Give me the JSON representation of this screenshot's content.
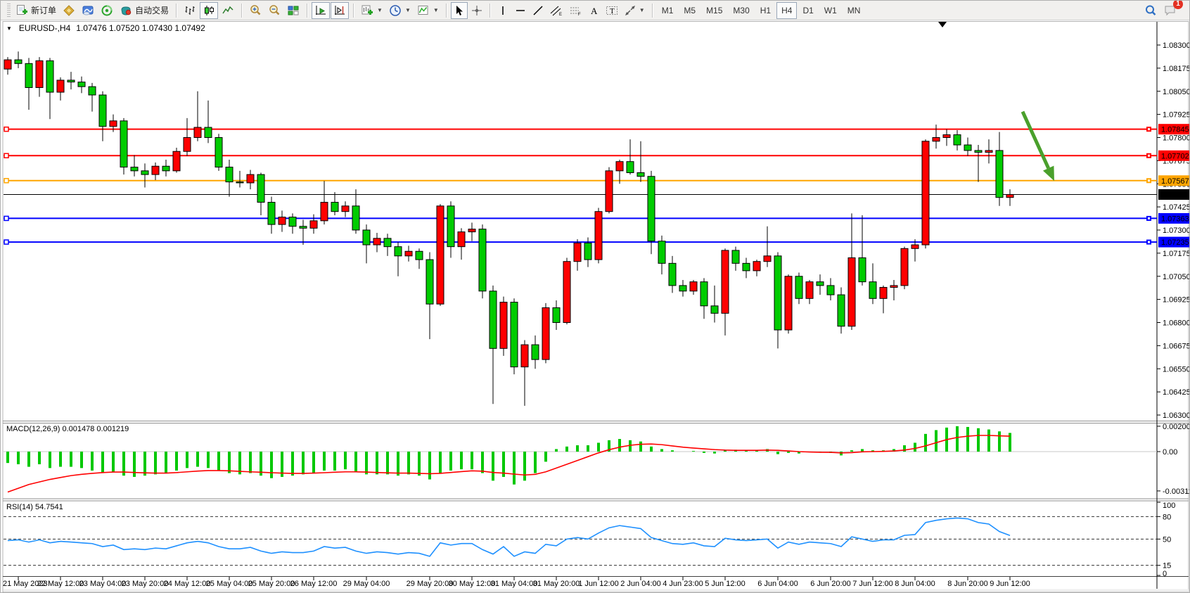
{
  "toolbar": {
    "new_order": "新订单",
    "autotrading": "自动交易",
    "timeframes": [
      "M1",
      "M5",
      "M15",
      "M30",
      "H1",
      "H4",
      "D1",
      "W1",
      "MN"
    ],
    "active_timeframe": "H4",
    "notification_badge": "1"
  },
  "chart": {
    "symbol_title": "EURUSD-,H4",
    "quote": "1.07476 1.07520 1.07430 1.07492"
  },
  "chart_data": [
    {
      "type": "candlestick",
      "symbol": "EURUSD-",
      "timeframe": "H4",
      "up_color": "#ff0000",
      "down_color": "#00cc00",
      "y_axis_ticks": [
        "1.08300",
        "1.08175",
        "1.08050",
        "1.07925",
        "1.07800",
        "1.07675",
        "1.07550",
        "1.07425",
        "1.07300",
        "1.07175",
        "1.07050",
        "1.06925",
        "1.06800",
        "1.06675",
        "1.06550",
        "1.06425",
        "1.06300"
      ],
      "ylim": [
        1.063,
        1.083
      ],
      "hlines": [
        {
          "price": 1.07845,
          "label": "1.07845",
          "color": "#ff0000"
        },
        {
          "price": 1.07702,
          "label": "1.07702",
          "color": "#ff0000"
        },
        {
          "price": 1.07567,
          "label": "1.07567",
          "color": "#ffa500"
        },
        {
          "price": 1.07363,
          "label": "1.07363",
          "color": "#0000ff"
        },
        {
          "price": 1.07235,
          "label": "1.07235",
          "color": "#0000ff"
        }
      ],
      "current_price": {
        "price": 1.07492,
        "label": "1.07492",
        "color": "#000000"
      },
      "arrow": {
        "from_bar": 96.2,
        "from_price": 1.0794,
        "to_bar": 99.2,
        "to_price": 1.07565,
        "color": "#4aa02c"
      },
      "time_labels": [
        [
          1,
          "21 May 2023"
        ],
        [
          5,
          "22 May 12:00"
        ],
        [
          9,
          "23 May 04:00"
        ],
        [
          13,
          "23 May 20:00"
        ],
        [
          17,
          "24 May 12:00"
        ],
        [
          21,
          "25 May 04:00"
        ],
        [
          25,
          "25 May 20:00"
        ],
        [
          29,
          "26 May 12:00"
        ],
        [
          34,
          "29 May 04:00"
        ],
        [
          40,
          "29 May 20:00"
        ],
        [
          44,
          "30 May 12:00"
        ],
        [
          48,
          "31 May 04:00"
        ],
        [
          52,
          "31 May 20:00"
        ],
        [
          56,
          "1 Jun 12:00"
        ],
        [
          60,
          "2 Jun 04:00"
        ],
        [
          64,
          "4 Jun 23:00"
        ],
        [
          68,
          "5 Jun 12:00"
        ],
        [
          73,
          "6 Jun 04:00"
        ],
        [
          78,
          "6 Jun 20:00"
        ],
        [
          82,
          "7 Jun 12:00"
        ],
        [
          86,
          "8 Jun 04:00"
        ],
        [
          91,
          "8 Jun 20:00"
        ],
        [
          95,
          "9 Jun 12:00"
        ]
      ],
      "ohlc": [
        [
          1.0817,
          1.08235,
          1.0814,
          1.0822
        ],
        [
          1.0822,
          1.08265,
          1.08175,
          1.082
        ],
        [
          1.082,
          1.0823,
          1.0795,
          1.0807
        ],
        [
          1.0807,
          1.08235,
          1.0802,
          1.08215
        ],
        [
          1.08215,
          1.0823,
          1.079,
          1.08045
        ],
        [
          1.08045,
          1.08125,
          1.08,
          1.0811
        ],
        [
          1.0811,
          1.08155,
          1.0806,
          1.081
        ],
        [
          1.081,
          1.0813,
          1.0804,
          1.08075
        ],
        [
          1.08075,
          1.08095,
          1.0794,
          1.0803
        ],
        [
          1.0803,
          1.0805,
          1.0778,
          1.0786
        ],
        [
          1.0786,
          1.07925,
          1.0783,
          1.0789
        ],
        [
          1.0789,
          1.07905,
          1.076,
          1.0764
        ],
        [
          1.0764,
          1.07705,
          1.0759,
          1.0762
        ],
        [
          1.0762,
          1.0766,
          1.0753,
          1.076
        ],
        [
          1.076,
          1.07665,
          1.0757,
          1.07645
        ],
        [
          1.07645,
          1.0768,
          1.0759,
          1.0762
        ],
        [
          1.0762,
          1.07745,
          1.0761,
          1.07725
        ],
        [
          1.07725,
          1.07905,
          1.077,
          1.078
        ],
        [
          1.078,
          1.0805,
          1.0778,
          1.07855
        ],
        [
          1.07855,
          1.08,
          1.0777,
          1.078
        ],
        [
          1.078,
          1.0782,
          1.0762,
          1.0764
        ],
        [
          1.0764,
          1.0768,
          1.0748,
          1.0756
        ],
        [
          1.0756,
          1.0762,
          1.0753,
          1.07555
        ],
        [
          1.07555,
          1.07625,
          1.0752,
          1.076
        ],
        [
          1.076,
          1.0761,
          1.0738,
          1.0745
        ],
        [
          1.0745,
          1.0748,
          1.0728,
          1.0733
        ],
        [
          1.0733,
          1.07405,
          1.0729,
          1.0737
        ],
        [
          1.0737,
          1.0739,
          1.0728,
          1.0732
        ],
        [
          1.0732,
          1.07355,
          1.0722,
          1.0731
        ],
        [
          1.0731,
          1.07385,
          1.0728,
          1.0735
        ],
        [
          1.0735,
          1.07565,
          1.0733,
          1.0745
        ],
        [
          1.0745,
          1.07505,
          1.0738,
          1.074
        ],
        [
          1.074,
          1.07455,
          1.0737,
          1.0743
        ],
        [
          1.0743,
          1.0752,
          1.0728,
          1.073
        ],
        [
          1.073,
          1.0733,
          1.0712,
          1.0722
        ],
        [
          1.0722,
          1.07285,
          1.0718,
          1.07255
        ],
        [
          1.07255,
          1.0728,
          1.0716,
          1.0721
        ],
        [
          1.0721,
          1.07235,
          1.0705,
          1.0716
        ],
        [
          1.0716,
          1.07215,
          1.0713,
          1.07185
        ],
        [
          1.07185,
          1.072,
          1.0709,
          1.0714
        ],
        [
          1.0714,
          1.0718,
          1.0671,
          1.069
        ],
        [
          1.069,
          1.0744,
          1.0689,
          1.0743
        ],
        [
          1.0743,
          1.07455,
          1.0715,
          1.0721
        ],
        [
          1.0721,
          1.0731,
          1.0714,
          1.0729
        ],
        [
          1.0729,
          1.0734,
          1.0724,
          1.07305
        ],
        [
          1.07305,
          1.0733,
          1.0693,
          1.0697
        ],
        [
          1.0697,
          1.07,
          1.0636,
          1.0666
        ],
        [
          1.0666,
          1.0694,
          1.0662,
          1.0691
        ],
        [
          1.0691,
          1.0693,
          1.0652,
          1.0656
        ],
        [
          1.0656,
          1.06705,
          1.0635,
          1.0668
        ],
        [
          1.0668,
          1.0673,
          1.0655,
          1.066
        ],
        [
          1.066,
          1.06905,
          1.0658,
          1.0688
        ],
        [
          1.0688,
          1.0692,
          1.0676,
          1.068
        ],
        [
          1.068,
          1.0715,
          1.0679,
          1.0713
        ],
        [
          1.0713,
          1.0725,
          1.0708,
          1.0723
        ],
        [
          1.0723,
          1.0726,
          1.071,
          1.0714
        ],
        [
          1.0714,
          1.0742,
          1.0712,
          1.074
        ],
        [
          1.074,
          1.0764,
          1.0739,
          1.0762
        ],
        [
          1.0762,
          1.0768,
          1.0755,
          1.0767
        ],
        [
          1.0767,
          1.0779,
          1.076,
          1.0761
        ],
        [
          1.0761,
          1.0778,
          1.0756,
          1.0759
        ],
        [
          1.0759,
          1.0762,
          1.0717,
          1.0724
        ],
        [
          1.0724,
          1.0727,
          1.0706,
          1.0712
        ],
        [
          1.0712,
          1.0716,
          1.0696,
          1.07
        ],
        [
          1.07,
          1.0703,
          1.0694,
          1.0697
        ],
        [
          1.0697,
          1.0703,
          1.0695,
          1.0702
        ],
        [
          1.0702,
          1.0704,
          1.0682,
          1.0689
        ],
        [
          1.0689,
          1.07,
          1.068,
          1.0685
        ],
        [
          1.0685,
          1.072,
          1.0673,
          1.0719
        ],
        [
          1.0719,
          1.0721,
          1.0708,
          1.0712
        ],
        [
          1.0712,
          1.0715,
          1.0704,
          1.0708
        ],
        [
          1.0708,
          1.0714,
          1.0705,
          1.0713
        ],
        [
          1.0713,
          1.0732,
          1.071,
          1.0716
        ],
        [
          1.0716,
          1.0718,
          1.0666,
          1.0676
        ],
        [
          1.0676,
          1.0706,
          1.0674,
          1.0705
        ],
        [
          1.0705,
          1.0707,
          1.069,
          1.0693
        ],
        [
          1.0693,
          1.0703,
          1.069,
          1.0702
        ],
        [
          1.0702,
          1.0706,
          1.0695,
          1.07
        ],
        [
          1.07,
          1.0704,
          1.0692,
          1.0695
        ],
        [
          1.0695,
          1.0699,
          1.0674,
          1.0678
        ],
        [
          1.0678,
          1.0739,
          1.0676,
          1.0715
        ],
        [
          1.0715,
          1.0738,
          1.07,
          1.0702
        ],
        [
          1.0702,
          1.0712,
          1.069,
          1.0693
        ],
        [
          1.0693,
          1.07,
          1.0685,
          1.0699
        ],
        [
          1.0699,
          1.0703,
          1.0692,
          1.07
        ],
        [
          1.07,
          1.0721,
          1.0698,
          1.072
        ],
        [
          1.072,
          1.0725,
          1.0713,
          1.0722
        ],
        [
          1.0722,
          1.0779,
          1.072,
          1.0778
        ],
        [
          1.0778,
          1.0787,
          1.0774,
          1.078
        ],
        [
          1.078,
          1.07845,
          1.07755,
          1.07815
        ],
        [
          1.07815,
          1.0784,
          1.0773,
          1.0776
        ],
        [
          1.0776,
          1.078,
          1.077,
          1.0773
        ],
        [
          1.0773,
          1.0776,
          1.0756,
          1.0772
        ],
        [
          1.0772,
          1.0779,
          1.0766,
          1.0773
        ],
        [
          1.0773,
          1.0783,
          1.0743,
          1.07476
        ],
        [
          1.07476,
          1.0752,
          1.0743,
          1.07492
        ]
      ]
    },
    {
      "type": "bar",
      "title": "MACD(12,26,9)",
      "current": "0.001478 0.001219",
      "bar_color": "#00c800",
      "signal_color": "#ff0000",
      "y_axis_ticks": [
        "0.002008",
        "0.00",
        "-0.003111"
      ],
      "ylim": [
        -0.003111,
        0.002008
      ],
      "histogram": [
        -0.0009,
        -0.001,
        -0.0012,
        -0.001,
        -0.0013,
        -0.0012,
        -0.0012,
        -0.0013,
        -0.0015,
        -0.0017,
        -0.0016,
        -0.0019,
        -0.002,
        -0.0019,
        -0.0018,
        -0.0017,
        -0.0015,
        -0.0013,
        -0.0012,
        -0.0013,
        -0.0015,
        -0.0017,
        -0.0018,
        -0.0017,
        -0.0019,
        -0.0021,
        -0.002,
        -0.0019,
        -0.0018,
        -0.0017,
        -0.0015,
        -0.0015,
        -0.0014,
        -0.0016,
        -0.0018,
        -0.0018,
        -0.0018,
        -0.0019,
        -0.0018,
        -0.0019,
        -0.0022,
        -0.0017,
        -0.0015,
        -0.0014,
        -0.0014,
        -0.0017,
        -0.0023,
        -0.002,
        -0.0026,
        -0.0023,
        -0.0017,
        -0.0008,
        0.0002,
        0.0004,
        0.0005,
        0.0005,
        0.0007,
        0.0009,
        0.001,
        0.0009,
        0.0008,
        0.0004,
        0.0002,
        0.0001,
        0.0,
        5e-05,
        -0.0001,
        -0.00015,
        0.0001,
        0.00015,
        0.0001,
        0.0001,
        0.0002,
        -0.0002,
        -0.0001,
        -0.00015,
        -5e-05,
        -5e-05,
        -0.0001,
        -0.0003,
        0.0001,
        0.0002,
        0.0001,
        0.0001,
        0.0002,
        0.0005,
        0.0007,
        0.0014,
        0.0017,
        0.0019,
        0.002008,
        0.00195,
        0.00185,
        0.00175,
        0.0016,
        0.001478
      ],
      "signal": [
        -0.0032,
        -0.0029,
        -0.0026,
        -0.0024,
        -0.0022,
        -0.00205,
        -0.0019,
        -0.0018,
        -0.00172,
        -0.00166,
        -0.00162,
        -0.00162,
        -0.00165,
        -0.00168,
        -0.0017,
        -0.0017,
        -0.00166,
        -0.0016,
        -0.00154,
        -0.0015,
        -0.0015,
        -0.00152,
        -0.00156,
        -0.0016,
        -0.00163,
        -0.00167,
        -0.0017,
        -0.00172,
        -0.00172,
        -0.0017,
        -0.00167,
        -0.00163,
        -0.0016,
        -0.0016,
        -0.00162,
        -0.00165,
        -0.00168,
        -0.0017,
        -0.0017,
        -0.00172,
        -0.00175,
        -0.00172,
        -0.00165,
        -0.00158,
        -0.00152,
        -0.00155,
        -0.00165,
        -0.0017,
        -0.00178,
        -0.00185,
        -0.0018,
        -0.0016,
        -0.0013,
        -0.001,
        -0.0007,
        -0.0004,
        -0.0001,
        0.00015,
        0.00035,
        0.0005,
        0.00058,
        0.0006,
        0.00055,
        0.00045,
        0.00035,
        0.00028,
        0.00022,
        0.00016,
        0.00012,
        0.0001,
        0.0001,
        0.0001,
        0.00012,
        0.0001,
        5e-05,
        0.0,
        -3e-05,
        -5e-05,
        -6e-05,
        -0.0001,
        -8e-05,
        -2e-05,
        0.0,
        2e-05,
        5e-05,
        0.00012,
        0.00025,
        0.00045,
        0.0007,
        0.00095,
        0.00112,
        0.00122,
        0.00128,
        0.00128,
        0.00125,
        0.001219
      ]
    },
    {
      "type": "line",
      "title": "RSI(14)",
      "current": "54.7541",
      "line_color": "#1e90ff",
      "y_axis_ticks": [
        "100",
        "80",
        "50",
        "15",
        "0"
      ],
      "levels_dashed": [
        80,
        50,
        15
      ],
      "ylim": [
        0,
        100
      ],
      "values": [
        48,
        49,
        46,
        49,
        45,
        47,
        46,
        45,
        44,
        40,
        42,
        36,
        37,
        36,
        38,
        37,
        41,
        45,
        47,
        45,
        40,
        37,
        37,
        39,
        34,
        31,
        33,
        32,
        32,
        34,
        40,
        38,
        39,
        34,
        31,
        33,
        32,
        30,
        32,
        31,
        27,
        45,
        42,
        44,
        44,
        36,
        30,
        40,
        27,
        33,
        31,
        43,
        41,
        50,
        52,
        50,
        58,
        65,
        68,
        66,
        64,
        52,
        48,
        44,
        43,
        45,
        41,
        40,
        51,
        49,
        48,
        49,
        50,
        38,
        46,
        43,
        46,
        45,
        44,
        40,
        53,
        50,
        47,
        49,
        49,
        55,
        56,
        72,
        75,
        77,
        78,
        77,
        72,
        70,
        60,
        54.75
      ]
    }
  ]
}
